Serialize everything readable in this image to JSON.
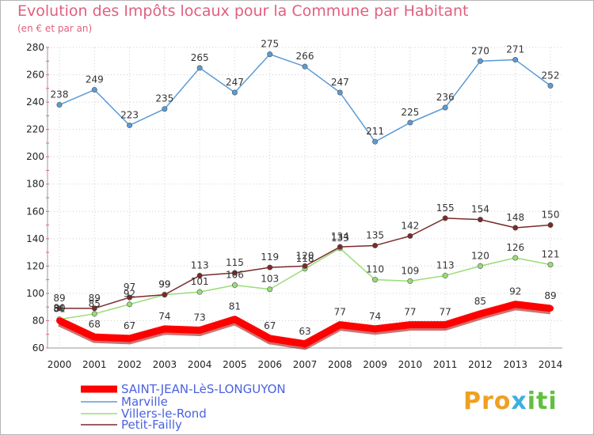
{
  "title": "Evolution des Impôts locaux pour la Commune par Habitant",
  "subtitle": "(en € et par an)",
  "logo": {
    "text": "Proxiti"
  },
  "chart_data": {
    "type": "line",
    "title": "Evolution des Impôts locaux pour la Commune par Habitant",
    "subtitle": "(en € et par an)",
    "x": [
      2000,
      2001,
      2002,
      2003,
      2004,
      2005,
      2006,
      2007,
      2008,
      2009,
      2010,
      2011,
      2012,
      2013,
      2014
    ],
    "ylim": [
      60,
      280
    ],
    "yticks": [
      60,
      80,
      100,
      120,
      140,
      160,
      180,
      200,
      220,
      240,
      260,
      280
    ],
    "grid": true,
    "legend": "bottom-left",
    "series": [
      {
        "name": "SAINT-JEAN-LèS-LONGUYON",
        "color": "#ff0000",
        "values": [
          80,
          68,
          67,
          74,
          73,
          81,
          67,
          63,
          77,
          74,
          77,
          77,
          85,
          92,
          89
        ]
      },
      {
        "name": "Marville",
        "color": "#5b9bd5",
        "values": [
          238,
          249,
          223,
          235,
          265,
          247,
          275,
          266,
          247,
          211,
          225,
          236,
          270,
          271,
          252
        ]
      },
      {
        "name": "Villers-le-Rond",
        "color": "#99dd77",
        "values": [
          81,
          85,
          92,
          99,
          101,
          106,
          103,
          118,
          133,
          110,
          109,
          113,
          120,
          126,
          121
        ]
      },
      {
        "name": "Petit-Failly",
        "color": "#7a2a2a",
        "values": [
          89,
          89,
          97,
          99,
          113,
          115,
          119,
          120,
          134,
          135,
          142,
          155,
          154,
          148,
          150
        ]
      }
    ]
  }
}
